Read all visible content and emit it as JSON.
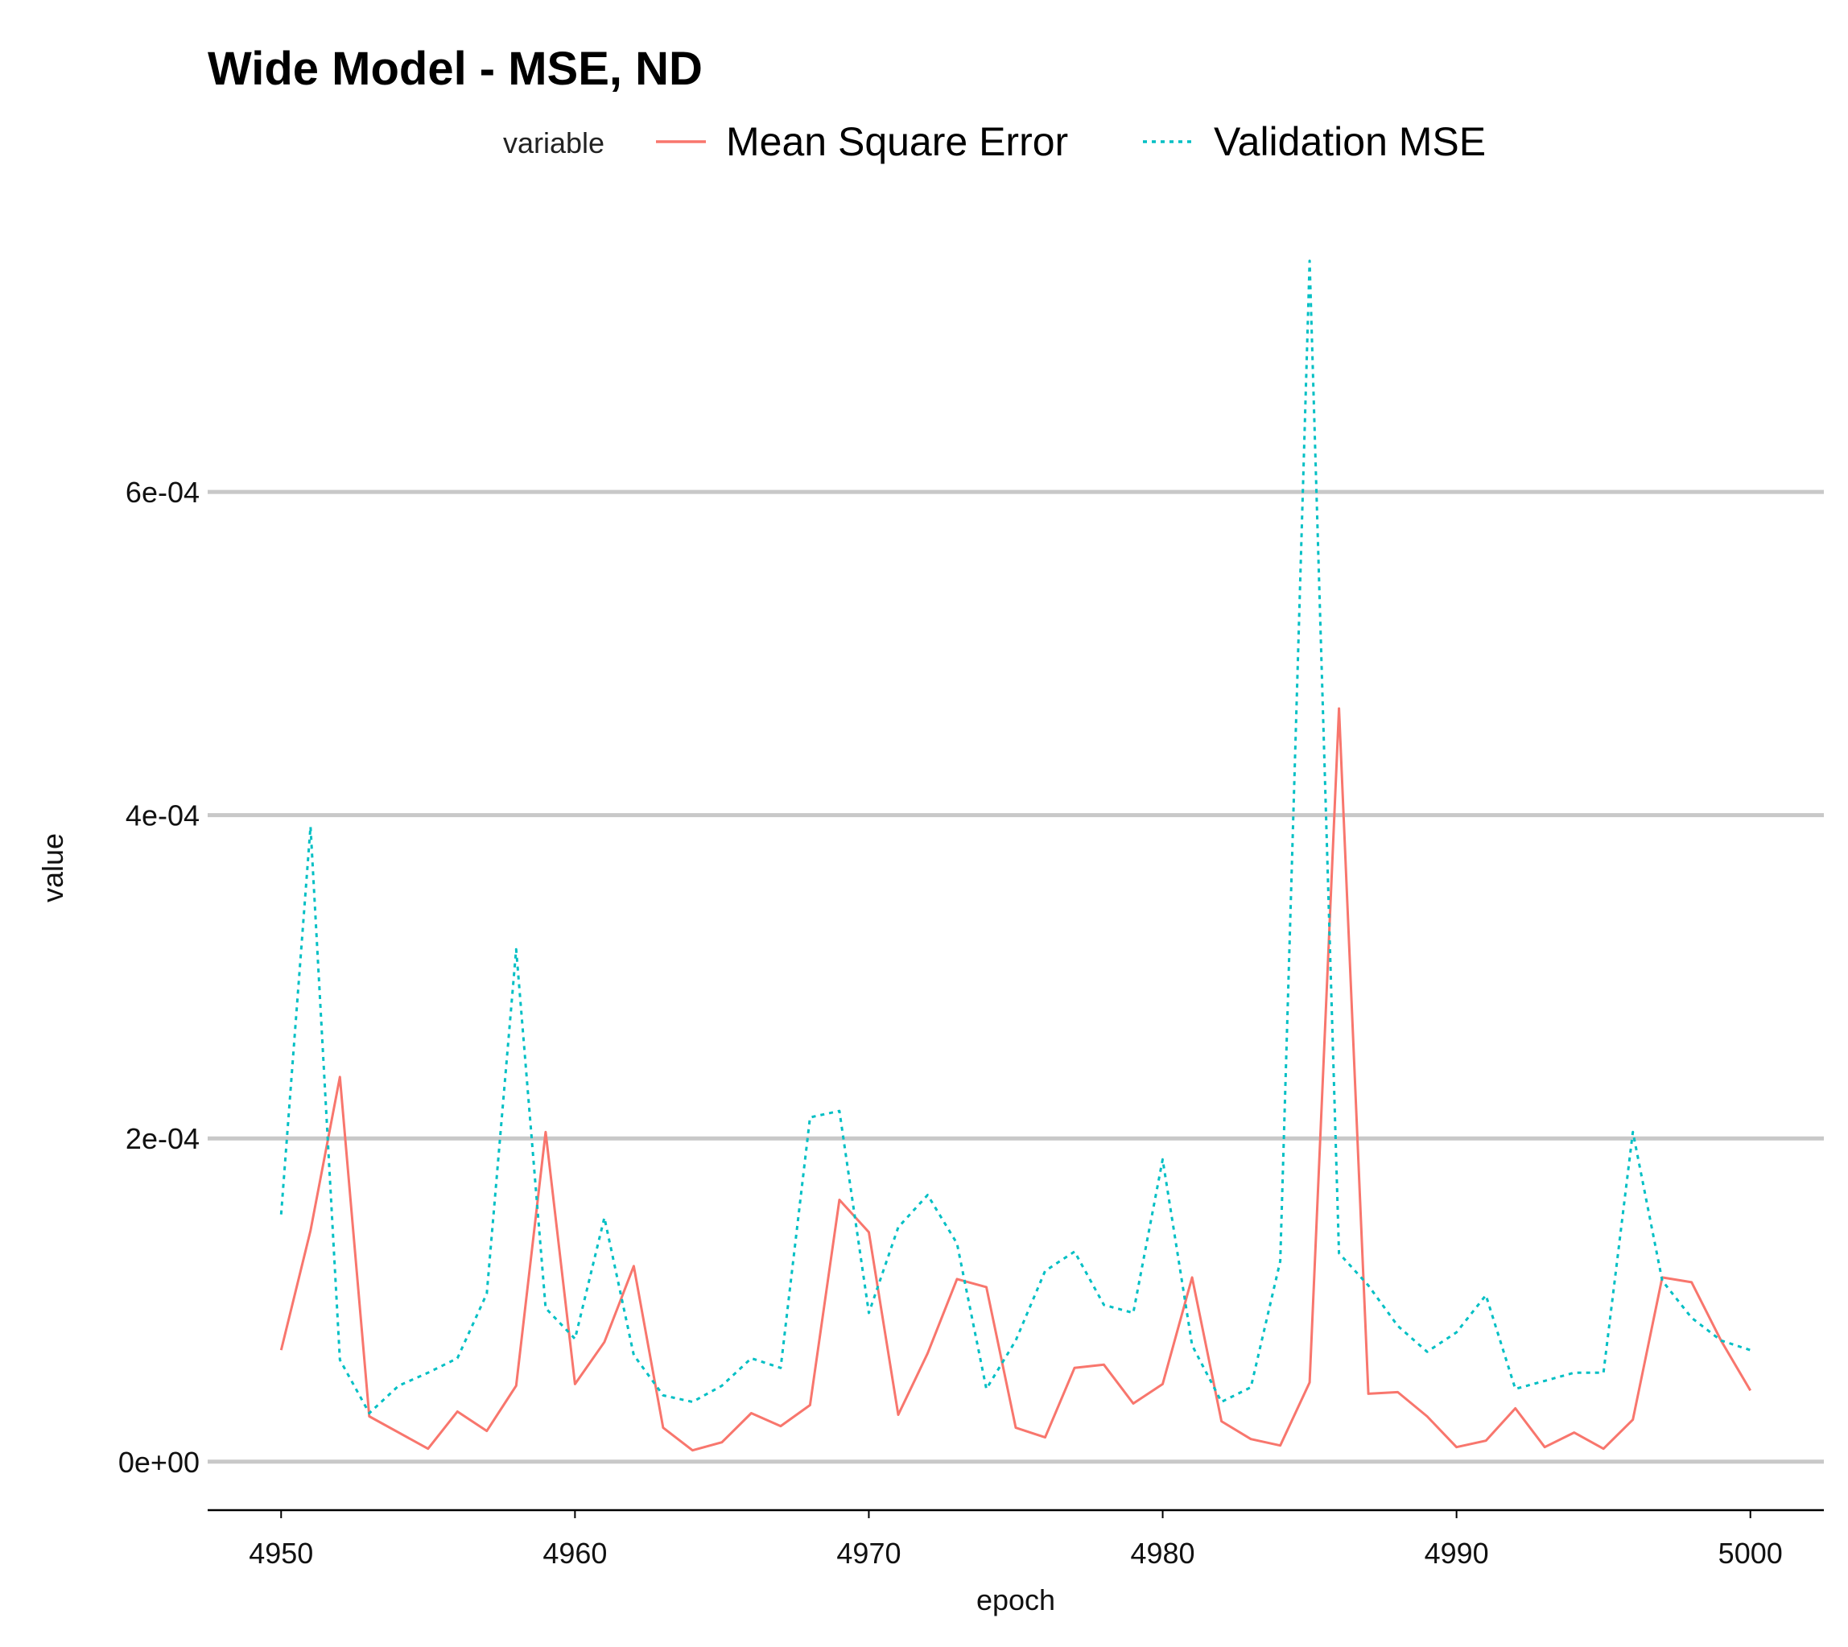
{
  "chart_data": {
    "type": "line",
    "title": "Wide Model - MSE, ND",
    "xlabel": "epoch",
    "ylabel": "value",
    "legend_title": "variable",
    "legend_position": "top",
    "grid": "horizontal major only",
    "xlim": [
      4947.5,
      5002.5
    ],
    "ylim": [
      -3e-05,
      0.00074
    ],
    "x_ticks": [
      {
        "value": 4950,
        "label": "4950"
      },
      {
        "value": 4960,
        "label": "4960"
      },
      {
        "value": 4970,
        "label": "4970"
      },
      {
        "value": 4980,
        "label": "4980"
      },
      {
        "value": 4990,
        "label": "4990"
      },
      {
        "value": 5000,
        "label": "5000"
      }
    ],
    "y_ticks": [
      {
        "value": 0,
        "label": "0e+00"
      },
      {
        "value": 0.0002,
        "label": "2e-04"
      },
      {
        "value": 0.0004,
        "label": "4e-04"
      },
      {
        "value": 0.0006,
        "label": "6e-04"
      }
    ],
    "x": [
      4950,
      4951,
      4952,
      4953,
      4954,
      4955,
      4956,
      4957,
      4958,
      4959,
      4960,
      4961,
      4962,
      4963,
      4964,
      4965,
      4966,
      4967,
      4968,
      4969,
      4970,
      4971,
      4972,
      4973,
      4974,
      4975,
      4976,
      4977,
      4978,
      4979,
      4980,
      4981,
      4982,
      4983,
      4984,
      4985,
      4986,
      4987,
      4988,
      4989,
      4990,
      4991,
      4992,
      4993,
      4994,
      4995,
      4996,
      4997,
      4998,
      4999,
      5000
    ],
    "series": [
      {
        "name": "Mean Square Error",
        "color": "#F8766D",
        "dash": "solid",
        "values": [
          6.9e-05,
          0.000143,
          0.000238,
          2.8e-05,
          1.8e-05,
          8e-06,
          3.1e-05,
          1.9e-05,
          4.7e-05,
          0.000204,
          4.8e-05,
          7.4e-05,
          0.000121,
          2.1e-05,
          7e-06,
          1.2e-05,
          3e-05,
          2.2e-05,
          3.5e-05,
          0.000162,
          0.000142,
          2.9e-05,
          6.7e-05,
          0.000113,
          0.000108,
          2.1e-05,
          1.5e-05,
          5.8e-05,
          6e-05,
          3.6e-05,
          4.8e-05,
          0.000114,
          2.5e-05,
          1.4e-05,
          1e-05,
          4.9e-05,
          0.000466,
          4.2e-05,
          4.3e-05,
          2.8e-05,
          9e-06,
          1.3e-05,
          3.3e-05,
          9e-06,
          1.8e-05,
          8e-06,
          2.6e-05,
          0.000114,
          0.000111,
          7.5e-05,
          4.4e-05
        ]
      },
      {
        "name": "Validation MSE",
        "color": "#00BFC4",
        "dash": "dotted",
        "values": [
          0.000153,
          0.000393,
          6.3e-05,
          3e-05,
          4.7e-05,
          5.5e-05,
          6.4e-05,
          0.000104,
          0.000317,
          9.5e-05,
          7.6e-05,
          0.000151,
          6.6e-05,
          4.1e-05,
          3.7e-05,
          4.7e-05,
          6.4e-05,
          5.8e-05,
          0.000213,
          0.000217,
          9.2e-05,
          0.000145,
          0.000165,
          0.000135,
          4.5e-05,
          7.5e-05,
          0.000118,
          0.00013,
          9.7e-05,
          9.2e-05,
          0.000187,
          7.2e-05,
          3.7e-05,
          4.6e-05,
          0.000124,
          0.000743,
          0.000129,
          0.000109,
          8.4e-05,
          6.8e-05,
          8e-05,
          0.000103,
          4.5e-05,
          5e-05,
          5.5e-05,
          5.5e-05,
          0.000204,
          0.000112,
          8.9e-05,
          7.5e-05,
          6.9e-05
        ]
      }
    ]
  }
}
